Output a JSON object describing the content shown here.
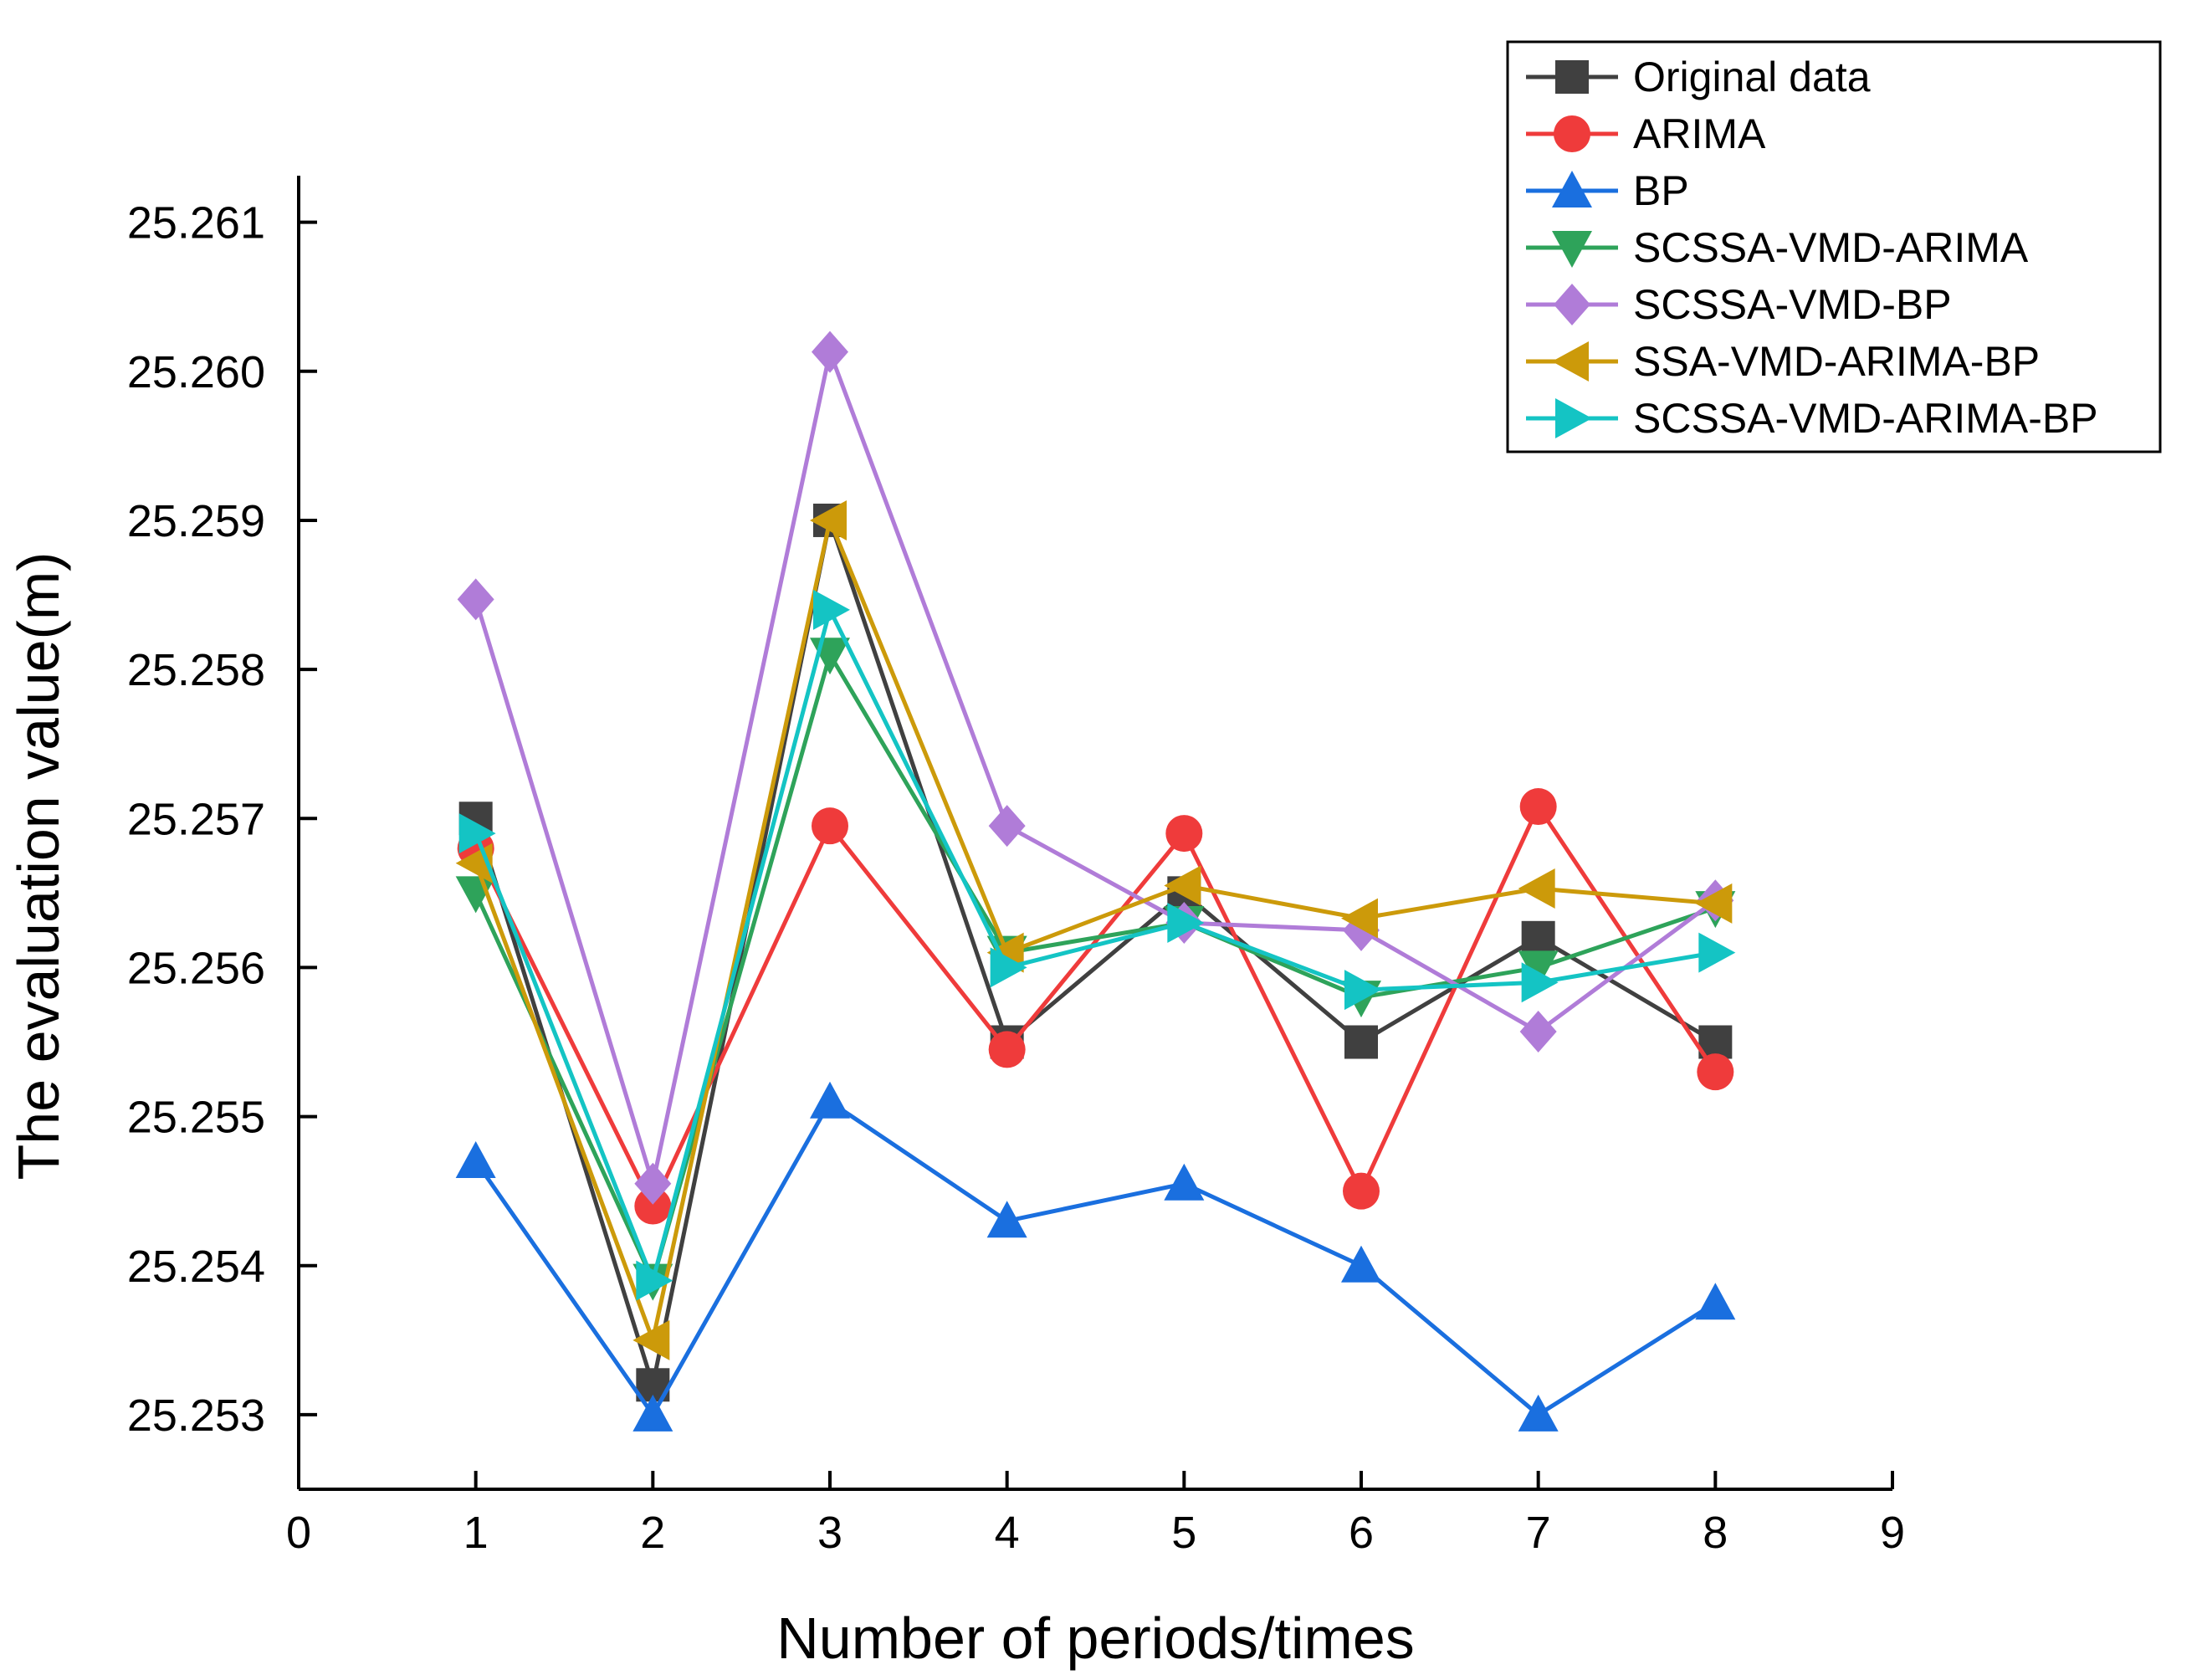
{
  "chart_data": {
    "type": "line",
    "title": "",
    "xlabel": "Number of periods/times",
    "ylabel": "The evaluation value(m)",
    "xlim": [
      0,
      9
    ],
    "ylim": [
      25.2525,
      25.2612
    ],
    "x_ticks": [
      "0",
      "1",
      "2",
      "3",
      "4",
      "5",
      "6",
      "7",
      "8",
      "9"
    ],
    "y_ticks": [
      "25.253",
      "25.254",
      "25.255",
      "25.256",
      "25.257",
      "25.258",
      "25.259",
      "25.260",
      "25.261"
    ],
    "x": [
      1,
      2,
      3,
      4,
      5,
      6,
      7,
      8
    ],
    "grid": false,
    "legend_position": "top-right",
    "series": [
      {
        "name": "Original data",
        "color": "#404040",
        "marker": "square",
        "values": [
          25.257,
          25.2532,
          25.259,
          25.2555,
          25.2565,
          25.2555,
          25.2562,
          25.2555
        ]
      },
      {
        "name": "ARIMA",
        "color": "#ef3b3b",
        "marker": "circle",
        "values": [
          25.2568,
          25.2544,
          25.25695,
          25.25545,
          25.2569,
          25.2545,
          25.25708,
          25.2553
        ]
      },
      {
        "name": "BP",
        "color": "#1a6fdf",
        "marker": "triangle-up",
        "values": [
          25.2547,
          25.253,
          25.2551,
          25.2543,
          25.25455,
          25.254,
          25.253,
          25.25375
        ]
      },
      {
        "name": "SCSSA-VMD-ARIMA",
        "color": "#2ea35a",
        "marker": "triangle-down",
        "values": [
          25.2565,
          25.2539,
          25.2581,
          25.2561,
          25.2563,
          25.2558,
          25.256,
          25.2564
        ]
      },
      {
        "name": "SCSSA-VMD-BP",
        "color": "#b07cd8",
        "marker": "diamond",
        "values": [
          25.25847,
          25.25455,
          25.26013,
          25.25695,
          25.2563,
          25.25625,
          25.25557,
          25.25645
        ]
      },
      {
        "name": "SSA-VMD-ARIMA-BP",
        "color": "#cc9a0a",
        "marker": "triangle-left",
        "values": [
          25.2567,
          25.2535,
          25.259,
          25.2561,
          25.25655,
          25.25633,
          25.25653,
          25.25643
        ]
      },
      {
        "name": "SCSSA-VMD-ARIMA-BP",
        "color": "#14c4c4",
        "marker": "triangle-right",
        "values": [
          25.2569,
          25.2539,
          25.2584,
          25.256,
          25.2563,
          25.25585,
          25.2559,
          25.2561
        ]
      }
    ]
  }
}
